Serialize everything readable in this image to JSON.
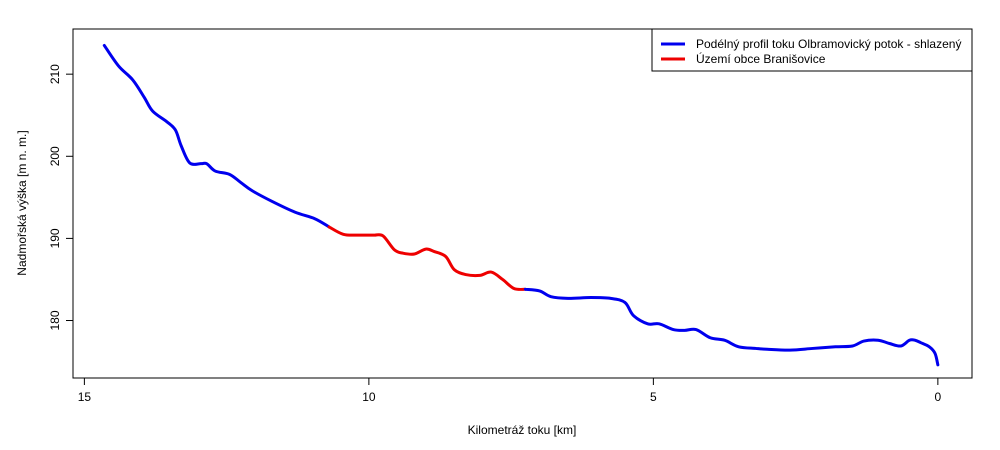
{
  "chart_data": {
    "type": "line",
    "xlabel": "Kilometráž toku [km]",
    "ylabel": "Nadmořská výška [m n. m.]",
    "x_reversed": true,
    "xlim": [
      15.2,
      -0.6
    ],
    "ylim": [
      173,
      215.5
    ],
    "x_ticks": [
      15,
      10,
      5,
      0
    ],
    "y_ticks": [
      180,
      190,
      200,
      210
    ],
    "legend_position": "top-right",
    "series": [
      {
        "name": "Podélný profil toku Olbramovický potok - shlazený",
        "color": "#0000EE",
        "x": [
          14.65,
          14.4,
          14.15,
          13.95,
          13.8,
          13.55,
          13.4,
          13.3,
          13.15,
          12.95,
          12.85,
          12.7,
          12.45,
          12.25,
          12.05,
          11.7,
          11.3,
          10.95,
          10.7
        ],
        "y": [
          213.5,
          211.0,
          209.3,
          207.2,
          205.5,
          204.2,
          203.2,
          201.3,
          199.2,
          199.1,
          199.1,
          198.2,
          197.8,
          196.8,
          195.8,
          194.5,
          193.2,
          192.4,
          191.4
        ]
      },
      {
        "name": "Území obce Branišovice",
        "color": "#EE0000",
        "x": [
          10.7,
          10.45,
          10.2,
          10.0,
          9.9,
          9.75,
          9.55,
          9.4,
          9.2,
          9.0,
          8.85,
          8.65,
          8.5,
          8.3,
          8.05,
          7.85,
          7.65,
          7.45,
          7.25
        ],
        "y": [
          191.4,
          190.5,
          190.4,
          190.4,
          190.4,
          190.3,
          188.6,
          188.2,
          188.1,
          188.7,
          188.4,
          187.8,
          186.2,
          185.6,
          185.5,
          185.9,
          185.0,
          183.9,
          183.8
        ]
      },
      {
        "name": "",
        "color": "#0000EE",
        "x": [
          7.25,
          7.0,
          6.8,
          6.5,
          6.1,
          5.75,
          5.5,
          5.35,
          5.1,
          4.9,
          4.65,
          4.45,
          4.25,
          4.0,
          3.75,
          3.5,
          3.2,
          3.0,
          2.6,
          2.2,
          1.8,
          1.5,
          1.3,
          1.05,
          0.85,
          0.65,
          0.5,
          0.4,
          0.3,
          0.15,
          0.05,
          0.0
        ],
        "y": [
          183.8,
          183.6,
          182.9,
          182.7,
          182.8,
          182.7,
          182.2,
          180.6,
          179.6,
          179.6,
          178.9,
          178.8,
          178.9,
          177.9,
          177.6,
          176.8,
          176.6,
          176.5,
          176.4,
          176.6,
          176.8,
          176.9,
          177.5,
          177.6,
          177.2,
          176.9,
          177.6,
          177.6,
          177.3,
          176.8,
          176.0,
          174.6
        ]
      }
    ]
  }
}
